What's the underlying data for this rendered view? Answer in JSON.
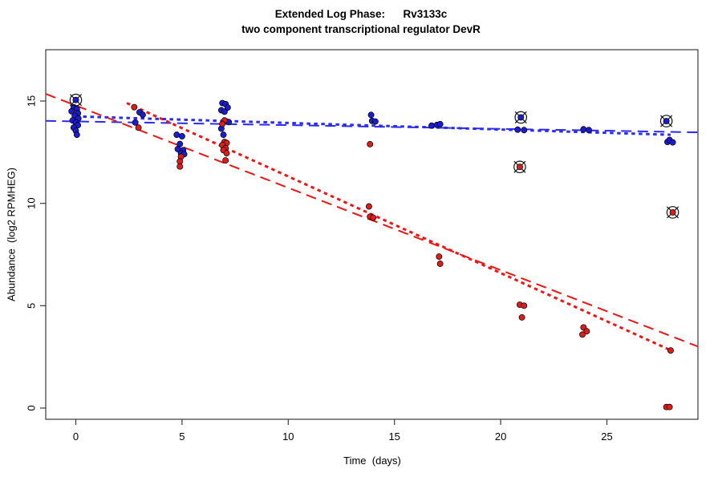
{
  "title": {
    "line1": "Extended Log Phase:      Rv3133c",
    "line2": "two component transcriptional regulator DevR"
  },
  "axes": {
    "x": {
      "label": "Time  (days)",
      "ticks": [
        0,
        5,
        10,
        15,
        20,
        25
      ]
    },
    "y": {
      "label": "Abundance  (log2 RPMHEG)",
      "ticks": [
        0,
        5,
        10,
        15
      ]
    }
  },
  "colors": {
    "blue_point": "#1b1bd0",
    "red_point": "#dd1c1c",
    "blue_line": "#2a2af0",
    "red_line": "#f01414",
    "outlier_marker_stroke": "#111111",
    "axis": "#3a3a3a",
    "text": "#000000",
    "background": "#ffffff"
  },
  "chart_data": {
    "type": "scatter",
    "title": "Extended Log Phase: Rv3133c — two component transcriptional regulator DevR",
    "xlabel": "Time (days)",
    "ylabel": "Abundance (log2 RPMHEG)",
    "xlim": [
      -1.42,
      29.3
    ],
    "ylim": [
      -0.55,
      17.5
    ],
    "grid": false,
    "legend": "none",
    "series": [
      {
        "name": "blue-points",
        "marker": "filled-circle",
        "color": "#1b1bd0",
        "points": [
          [
            -0.1,
            14.7
          ],
          [
            0.05,
            14.6
          ],
          [
            -0.2,
            14.5
          ],
          [
            0.1,
            14.4
          ],
          [
            -0.05,
            14.28
          ],
          [
            0.12,
            14.15
          ],
          [
            -0.15,
            14.05
          ],
          [
            0.0,
            13.95
          ],
          [
            0.1,
            13.82
          ],
          [
            -0.1,
            13.7
          ],
          [
            0.0,
            13.55
          ],
          [
            0.05,
            13.35
          ],
          [
            3.0,
            14.45
          ],
          [
            3.15,
            14.33
          ],
          [
            2.8,
            13.95
          ],
          [
            4.75,
            13.35
          ],
          [
            5.0,
            13.28
          ],
          [
            4.9,
            12.9
          ],
          [
            4.8,
            12.65
          ],
          [
            5.05,
            12.6
          ],
          [
            4.95,
            12.45
          ],
          [
            5.1,
            12.4
          ],
          [
            6.9,
            14.9
          ],
          [
            7.05,
            14.85
          ],
          [
            7.15,
            14.68
          ],
          [
            6.85,
            14.55
          ],
          [
            7.0,
            14.48
          ],
          [
            7.1,
            14.0
          ],
          [
            7.2,
            13.97
          ],
          [
            6.85,
            13.65
          ],
          [
            6.95,
            13.35
          ],
          [
            13.9,
            14.32
          ],
          [
            13.95,
            14.03
          ],
          [
            14.1,
            14.0
          ],
          [
            16.75,
            13.8
          ],
          [
            17.0,
            13.83
          ],
          [
            17.15,
            13.87
          ],
          [
            20.8,
            13.6
          ],
          [
            21.1,
            13.58
          ],
          [
            23.9,
            13.62
          ],
          [
            24.15,
            13.58
          ],
          [
            27.85,
            13.0
          ],
          [
            27.95,
            13.1
          ],
          [
            28.1,
            12.98
          ]
        ]
      },
      {
        "name": "red-points",
        "marker": "filled-circle",
        "color": "#dd1c1c",
        "points": [
          [
            2.75,
            14.7
          ],
          [
            2.95,
            13.7
          ],
          [
            4.95,
            12.28
          ],
          [
            4.9,
            12.05
          ],
          [
            4.9,
            11.8
          ],
          [
            7.0,
            14.05
          ],
          [
            6.9,
            13.88
          ],
          [
            7.0,
            13.0
          ],
          [
            7.1,
            12.95
          ],
          [
            6.9,
            12.85
          ],
          [
            7.05,
            12.7
          ],
          [
            6.95,
            12.6
          ],
          [
            7.1,
            12.45
          ],
          [
            7.05,
            12.1
          ],
          [
            13.85,
            12.89
          ],
          [
            13.8,
            9.85
          ],
          [
            13.85,
            9.35
          ],
          [
            14.0,
            9.3
          ],
          [
            17.1,
            7.4
          ],
          [
            17.15,
            7.05
          ],
          [
            20.9,
            5.05
          ],
          [
            21.1,
            5.0
          ],
          [
            21.0,
            4.43
          ],
          [
            23.9,
            3.94
          ],
          [
            24.05,
            3.75
          ],
          [
            23.85,
            3.59
          ],
          [
            28.0,
            2.81
          ],
          [
            27.8,
            0.05
          ],
          [
            27.95,
            0.05
          ]
        ]
      },
      {
        "name": "blue-circled-outliers",
        "marker": "circle-x-outlier",
        "color": "#1b1bd0",
        "points": [
          [
            0.0,
            15.05
          ],
          [
            20.95,
            14.2
          ],
          [
            27.8,
            14.02
          ]
        ]
      },
      {
        "name": "red-circled-outliers",
        "marker": "circle-x-outlier",
        "color": "#dd1c1c",
        "points": [
          [
            20.9,
            11.78
          ],
          [
            28.1,
            9.56
          ]
        ]
      }
    ],
    "trend_lines": [
      {
        "name": "blue-dashed-fit",
        "style": "dashed",
        "color": "#2a2af0",
        "x": [
          -1.42,
          29.3
        ],
        "y": [
          14.03,
          13.47
        ]
      },
      {
        "name": "blue-dotted-fit",
        "style": "dotted",
        "color": "#2a2af0",
        "x": [
          0.0,
          28.0
        ],
        "y": [
          14.25,
          13.35
        ]
      },
      {
        "name": "red-dashed-fit",
        "style": "dashed",
        "color": "#f01414",
        "x": [
          -1.42,
          29.3
        ],
        "y": [
          15.35,
          3.0
        ]
      },
      {
        "name": "red-dotted-fit",
        "style": "dotted",
        "color": "#f01414",
        "x": [
          2.4,
          28.05
        ],
        "y": [
          14.9,
          2.8
        ]
      }
    ]
  }
}
